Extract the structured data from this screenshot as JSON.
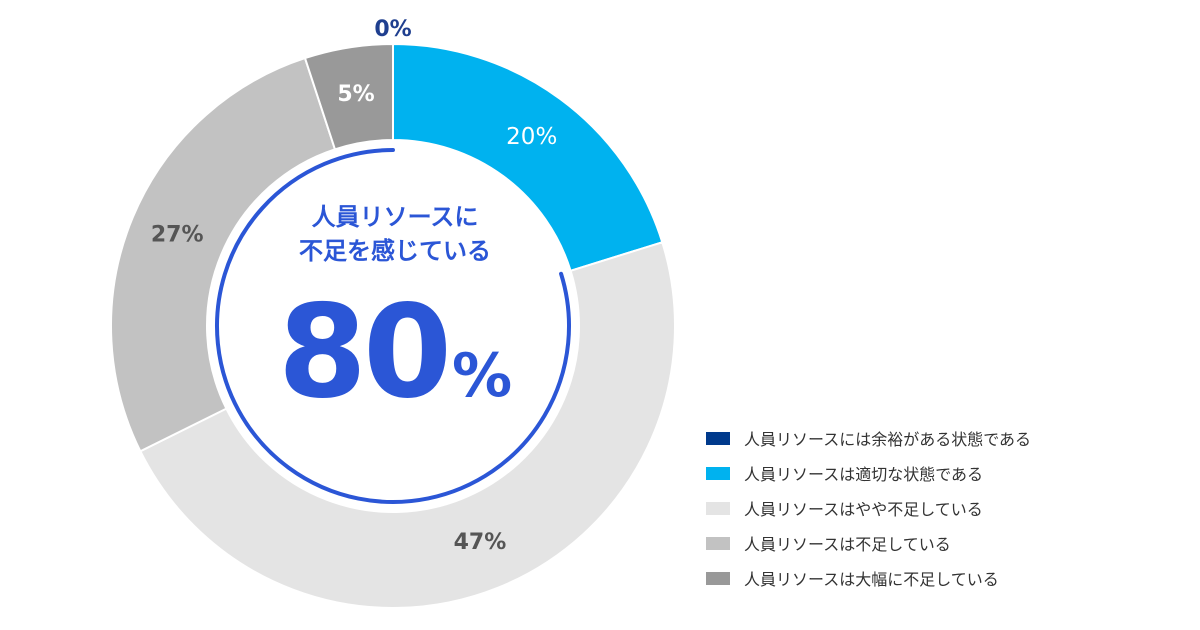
{
  "chart_data": {
    "type": "pie",
    "categories": [
      "人員リソースには余裕がある状態である",
      "人員リソースは適切な状態である",
      "人員リソースはやや不足している",
      "人員リソースは不足している",
      "人員リソースは大幅に不足している"
    ],
    "values": [
      0,
      20,
      47,
      27,
      5
    ],
    "data_labels": [
      "0%",
      "20%",
      "47%",
      "27%",
      "5%"
    ],
    "colors": [
      "#003a8c",
      "#00b2ef",
      "#e4e4e4",
      "#c2c2c2",
      "#999999"
    ],
    "label_colors": [
      "#1f3f8f",
      "#ffffff",
      "#555555",
      "#555555",
      "#ffffff"
    ],
    "legend_position": "bottom-right",
    "style": "donut",
    "center_caption_line1": "人員リソースに",
    "center_caption_line2": "不足を感じている",
    "center_value": "80",
    "center_unit": "%",
    "center_accent_color": "#2b56d6"
  }
}
